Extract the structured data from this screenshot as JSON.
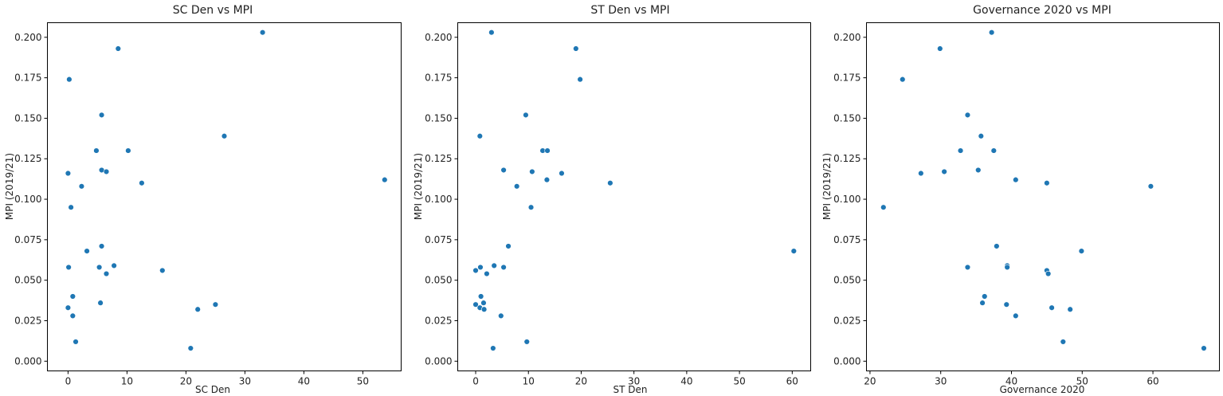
{
  "chart_data": [
    {
      "type": "scatter",
      "title": "SC Den vs MPI",
      "xlabel": "SC Den",
      "ylabel": "MPI (2019/21)",
      "xlim": [
        -3.5,
        56.5
      ],
      "ylim": [
        -0.006,
        0.209
      ],
      "xticks": [
        0,
        10,
        20,
        30,
        40,
        50
      ],
      "yticks": [
        0.0,
        0.025,
        0.05,
        0.075,
        0.1,
        0.125,
        0.15,
        0.175,
        0.2
      ],
      "grid": false,
      "color": "#1f77b4",
      "points": [
        {
          "x": 0.2,
          "y": 0.174
        },
        {
          "x": 8.5,
          "y": 0.193
        },
        {
          "x": 33.0,
          "y": 0.203
        },
        {
          "x": 5.7,
          "y": 0.152
        },
        {
          "x": 4.8,
          "y": 0.13
        },
        {
          "x": 10.2,
          "y": 0.13
        },
        {
          "x": 26.5,
          "y": 0.139
        },
        {
          "x": 0.0,
          "y": 0.116
        },
        {
          "x": 5.7,
          "y": 0.118
        },
        {
          "x": 6.5,
          "y": 0.117
        },
        {
          "x": 2.3,
          "y": 0.108
        },
        {
          "x": 12.5,
          "y": 0.11
        },
        {
          "x": 53.7,
          "y": 0.112
        },
        {
          "x": 0.5,
          "y": 0.095
        },
        {
          "x": 3.2,
          "y": 0.068
        },
        {
          "x": 5.7,
          "y": 0.071
        },
        {
          "x": 0.1,
          "y": 0.058
        },
        {
          "x": 5.3,
          "y": 0.058
        },
        {
          "x": 7.8,
          "y": 0.059
        },
        {
          "x": 6.5,
          "y": 0.054
        },
        {
          "x": 16.0,
          "y": 0.056
        },
        {
          "x": 0.8,
          "y": 0.04
        },
        {
          "x": 0.0,
          "y": 0.033
        },
        {
          "x": 5.5,
          "y": 0.036
        },
        {
          "x": 0.8,
          "y": 0.028
        },
        {
          "x": 22.0,
          "y": 0.032
        },
        {
          "x": 25.0,
          "y": 0.035
        },
        {
          "x": 1.3,
          "y": 0.012
        },
        {
          "x": 20.8,
          "y": 0.008
        }
      ]
    },
    {
      "type": "scatter",
      "title": "ST Den vs MPI",
      "xlabel": "ST Den",
      "ylabel": "MPI (2019/21)",
      "xlim": [
        -3.4,
        63.5
      ],
      "ylim": [
        -0.006,
        0.209
      ],
      "xticks": [
        0,
        10,
        20,
        30,
        40,
        50,
        60
      ],
      "yticks": [
        0.0,
        0.025,
        0.05,
        0.075,
        0.1,
        0.125,
        0.15,
        0.175,
        0.2
      ],
      "grid": false,
      "color": "#1f77b4",
      "points": [
        {
          "x": 3.0,
          "y": 0.203
        },
        {
          "x": 19.0,
          "y": 0.193
        },
        {
          "x": 19.8,
          "y": 0.174
        },
        {
          "x": 9.5,
          "y": 0.152
        },
        {
          "x": 0.8,
          "y": 0.139
        },
        {
          "x": 12.7,
          "y": 0.13
        },
        {
          "x": 13.6,
          "y": 0.13
        },
        {
          "x": 5.3,
          "y": 0.118
        },
        {
          "x": 10.7,
          "y": 0.117
        },
        {
          "x": 16.3,
          "y": 0.116
        },
        {
          "x": 13.5,
          "y": 0.112
        },
        {
          "x": 25.5,
          "y": 0.11
        },
        {
          "x": 7.8,
          "y": 0.108
        },
        {
          "x": 10.5,
          "y": 0.095
        },
        {
          "x": 6.2,
          "y": 0.071
        },
        {
          "x": 60.3,
          "y": 0.068
        },
        {
          "x": 0.9,
          "y": 0.058
        },
        {
          "x": 3.5,
          "y": 0.059
        },
        {
          "x": 5.3,
          "y": 0.058
        },
        {
          "x": 0.0,
          "y": 0.056
        },
        {
          "x": 2.1,
          "y": 0.054
        },
        {
          "x": 1.0,
          "y": 0.04
        },
        {
          "x": 0.0,
          "y": 0.035
        },
        {
          "x": 1.5,
          "y": 0.036
        },
        {
          "x": 0.8,
          "y": 0.033
        },
        {
          "x": 1.6,
          "y": 0.032
        },
        {
          "x": 4.8,
          "y": 0.028
        },
        {
          "x": 9.7,
          "y": 0.012
        },
        {
          "x": 3.3,
          "y": 0.008
        }
      ]
    },
    {
      "type": "scatter",
      "title": "Governance 2020 vs MPI",
      "xlabel": "Governance 2020",
      "ylabel": "MPI (2019/21)",
      "xlim": [
        19.5,
        69.4
      ],
      "ylim": [
        -0.006,
        0.209
      ],
      "xticks": [
        20,
        30,
        40,
        50,
        60
      ],
      "yticks": [
        0.0,
        0.025,
        0.05,
        0.075,
        0.1,
        0.125,
        0.15,
        0.175,
        0.2
      ],
      "grid": false,
      "color": "#1f77b4",
      "points": [
        {
          "x": 37.2,
          "y": 0.203
        },
        {
          "x": 29.9,
          "y": 0.193
        },
        {
          "x": 24.6,
          "y": 0.174
        },
        {
          "x": 33.8,
          "y": 0.152
        },
        {
          "x": 35.7,
          "y": 0.139
        },
        {
          "x": 32.8,
          "y": 0.13
        },
        {
          "x": 37.5,
          "y": 0.13
        },
        {
          "x": 27.2,
          "y": 0.116
        },
        {
          "x": 30.5,
          "y": 0.117
        },
        {
          "x": 35.3,
          "y": 0.118
        },
        {
          "x": 40.6,
          "y": 0.112
        },
        {
          "x": 45.0,
          "y": 0.11
        },
        {
          "x": 59.7,
          "y": 0.108
        },
        {
          "x": 21.9,
          "y": 0.095
        },
        {
          "x": 37.9,
          "y": 0.071
        },
        {
          "x": 49.9,
          "y": 0.068
        },
        {
          "x": 33.8,
          "y": 0.058
        },
        {
          "x": 39.4,
          "y": 0.059
        },
        {
          "x": 39.4,
          "y": 0.058
        },
        {
          "x": 45.0,
          "y": 0.056
        },
        {
          "x": 45.2,
          "y": 0.054
        },
        {
          "x": 36.2,
          "y": 0.04
        },
        {
          "x": 35.9,
          "y": 0.036
        },
        {
          "x": 39.3,
          "y": 0.035
        },
        {
          "x": 45.7,
          "y": 0.033
        },
        {
          "x": 48.3,
          "y": 0.032
        },
        {
          "x": 40.6,
          "y": 0.028
        },
        {
          "x": 47.3,
          "y": 0.012
        },
        {
          "x": 67.2,
          "y": 0.008
        }
      ]
    }
  ]
}
